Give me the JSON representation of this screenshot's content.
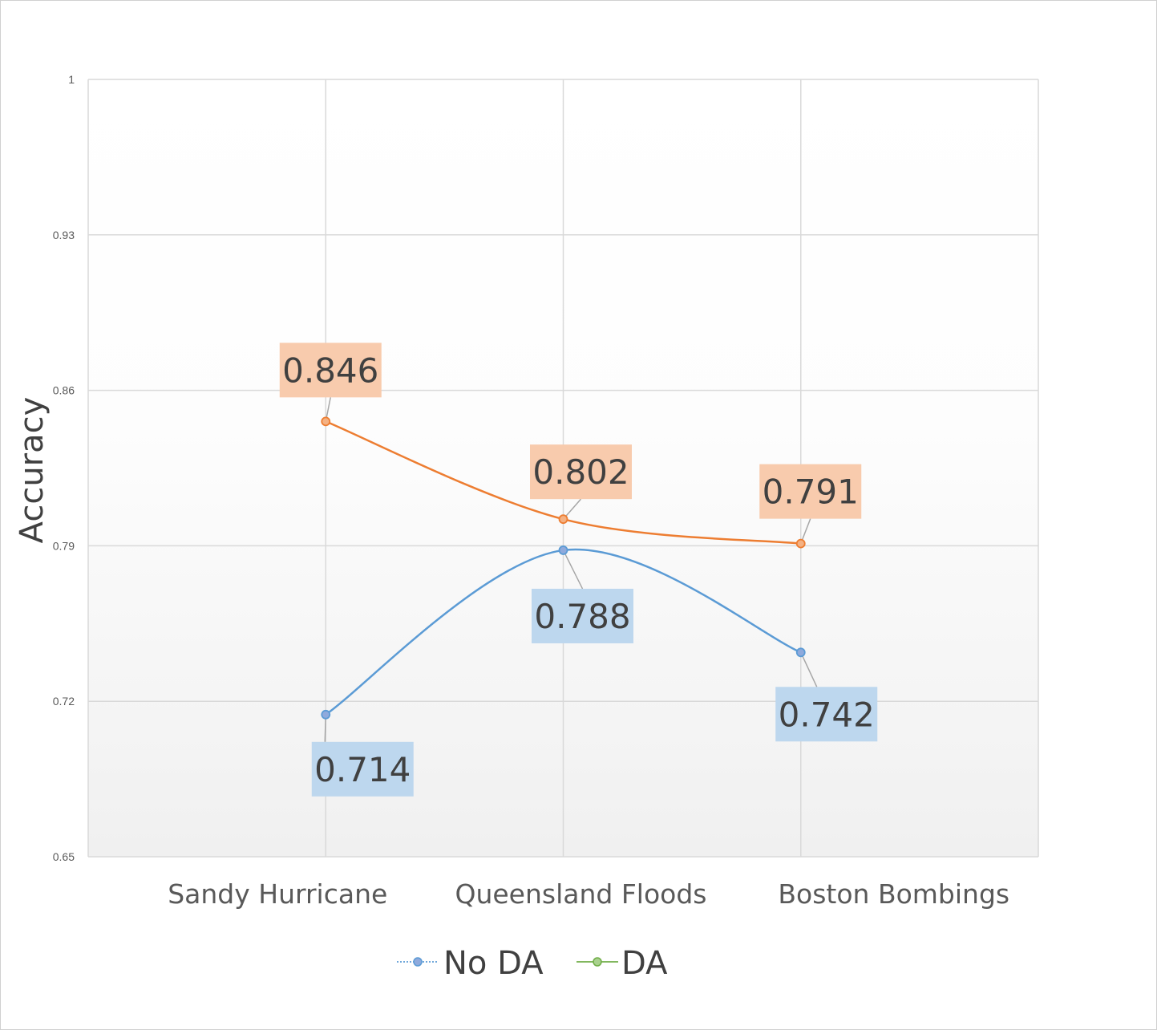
{
  "chart_data": {
    "type": "line",
    "categories": [
      "Sandy Hurricane",
      "Queensland Floods",
      "Boston Bombings"
    ],
    "series": [
      {
        "name": "No DA",
        "values": [
          0.714,
          0.788,
          0.742
        ],
        "color": "#5b9bd5",
        "marker_color": "#8faadc",
        "label_bg": "#bdd7ee"
      },
      {
        "name": "DA",
        "values": [
          0.846,
          0.802,
          0.791
        ],
        "color": "#ed7d31",
        "marker_color": "#f4b183",
        "label_bg": "#f8cbad",
        "legend_color": "#70ad47",
        "legend_marker": "#a9d18e"
      }
    ],
    "title": "",
    "xlabel": "",
    "ylabel": "Accuracy",
    "ylim": [
      0.65,
      1
    ],
    "yticks": [
      "0.65",
      "0.72",
      "0.79",
      "0.86",
      "0.93",
      "1"
    ],
    "grid": true,
    "legend": "bottom"
  }
}
